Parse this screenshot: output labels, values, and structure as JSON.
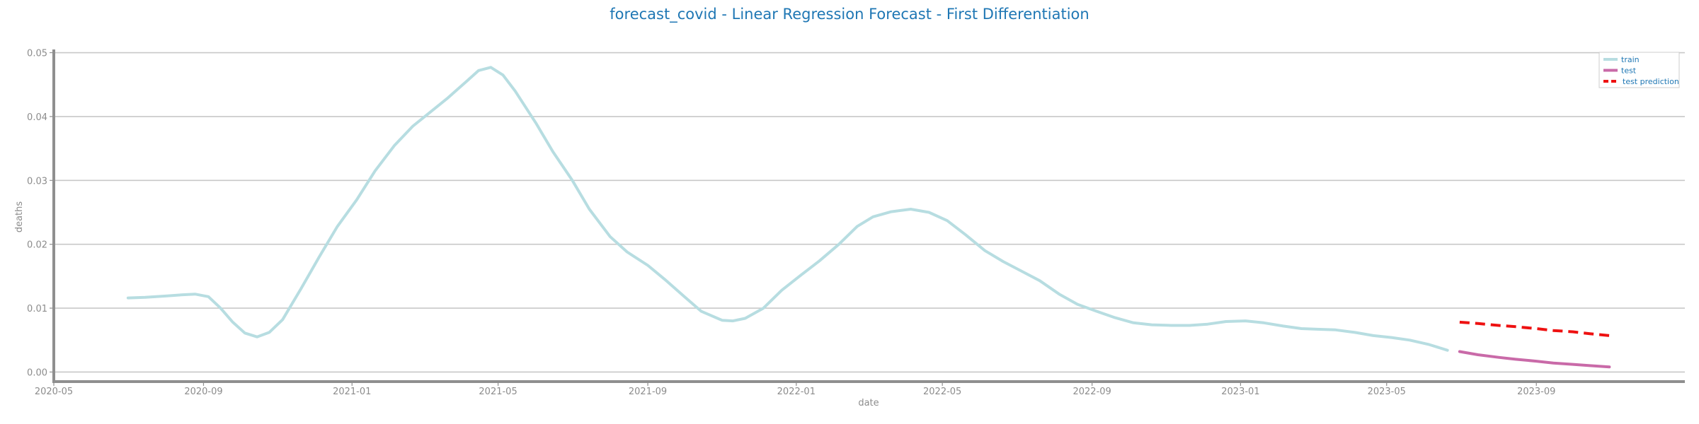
{
  "chart_data": {
    "type": "line",
    "title": "forecast_covid - Linear Regression Forecast - First Differentiation",
    "xlabel": "date",
    "ylabel": "deaths",
    "xlim": [
      "2020-05-01",
      "2024-01-01"
    ],
    "ylim": [
      -0.0015,
      0.0505
    ],
    "x_ticks": [
      "2020-05",
      "2020-09",
      "2021-01",
      "2021-05",
      "2021-09",
      "2022-01",
      "2022-05",
      "2022-09",
      "2023-01",
      "2023-05",
      "2023-09"
    ],
    "y_ticks": [
      "0.00",
      "0.01",
      "0.02",
      "0.03",
      "0.04",
      "0.05"
    ],
    "grid": "horizontal",
    "legend": "top-right",
    "series": [
      {
        "name": "train",
        "color": "#b7dde1",
        "dash": "solid",
        "points": [
          [
            "2020-07-01",
            0.0116
          ],
          [
            "2020-07-15",
            0.0117
          ],
          [
            "2020-08-01",
            0.0119
          ],
          [
            "2020-08-15",
            0.0121
          ],
          [
            "2020-08-25",
            0.0122
          ],
          [
            "2020-09-05",
            0.0118
          ],
          [
            "2020-09-15",
            0.01
          ],
          [
            "2020-09-25",
            0.0078
          ],
          [
            "2020-10-05",
            0.0061
          ],
          [
            "2020-10-15",
            0.0055
          ],
          [
            "2020-10-25",
            0.0062
          ],
          [
            "2020-11-05",
            0.0082
          ],
          [
            "2020-11-20",
            0.013
          ],
          [
            "2020-12-05",
            0.018
          ],
          [
            "2020-12-20",
            0.0228
          ],
          [
            "2021-01-05",
            0.027
          ],
          [
            "2021-01-20",
            0.0315
          ],
          [
            "2021-02-05",
            0.0355
          ],
          [
            "2021-02-20",
            0.0385
          ],
          [
            "2021-03-05",
            0.0405
          ],
          [
            "2021-03-20",
            0.0428
          ],
          [
            "2021-04-05",
            0.0455
          ],
          [
            "2021-04-15",
            0.0472
          ],
          [
            "2021-04-25",
            0.0477
          ],
          [
            "2021-05-05",
            0.0465
          ],
          [
            "2021-05-15",
            0.044
          ],
          [
            "2021-06-01",
            0.039
          ],
          [
            "2021-06-15",
            0.0345
          ],
          [
            "2021-07-01",
            0.03
          ],
          [
            "2021-07-15",
            0.0255
          ],
          [
            "2021-08-01",
            0.0212
          ],
          [
            "2021-08-15",
            0.0188
          ],
          [
            "2021-09-01",
            0.0167
          ],
          [
            "2021-09-15",
            0.0145
          ],
          [
            "2021-10-01",
            0.0118
          ],
          [
            "2021-10-15",
            0.0095
          ],
          [
            "2021-11-01",
            0.0081
          ],
          [
            "2021-11-10",
            0.008
          ],
          [
            "2021-11-20",
            0.0084
          ],
          [
            "2021-12-05",
            0.01
          ],
          [
            "2021-12-20",
            0.0128
          ],
          [
            "2022-01-05",
            0.0152
          ],
          [
            "2022-01-20",
            0.0174
          ],
          [
            "2022-02-05",
            0.02
          ],
          [
            "2022-02-20",
            0.0228
          ],
          [
            "2022-03-05",
            0.0243
          ],
          [
            "2022-03-20",
            0.0251
          ],
          [
            "2022-04-05",
            0.0255
          ],
          [
            "2022-04-20",
            0.025
          ],
          [
            "2022-05-05",
            0.0237
          ],
          [
            "2022-05-20",
            0.0215
          ],
          [
            "2022-06-05",
            0.019
          ],
          [
            "2022-06-20",
            0.0173
          ],
          [
            "2022-07-05",
            0.0158
          ],
          [
            "2022-07-20",
            0.0143
          ],
          [
            "2022-08-05",
            0.0122
          ],
          [
            "2022-08-20",
            0.0106
          ],
          [
            "2022-09-05",
            0.0095
          ],
          [
            "2022-09-20",
            0.0085
          ],
          [
            "2022-10-05",
            0.0077
          ],
          [
            "2022-10-20",
            0.0074
          ],
          [
            "2022-11-05",
            0.0073
          ],
          [
            "2022-11-20",
            0.0073
          ],
          [
            "2022-12-05",
            0.0075
          ],
          [
            "2022-12-20",
            0.0079
          ],
          [
            "2023-01-05",
            0.008
          ],
          [
            "2023-01-20",
            0.0077
          ],
          [
            "2023-02-05",
            0.0072
          ],
          [
            "2023-02-20",
            0.0068
          ],
          [
            "2023-03-05",
            0.0067
          ],
          [
            "2023-03-20",
            0.0066
          ],
          [
            "2023-04-05",
            0.0062
          ],
          [
            "2023-04-20",
            0.0057
          ],
          [
            "2023-05-05",
            0.0054
          ],
          [
            "2023-05-20",
            0.005
          ],
          [
            "2023-06-05",
            0.0043
          ],
          [
            "2023-06-20",
            0.0034
          ]
        ]
      },
      {
        "name": "test",
        "color": "#c96aa8",
        "dash": "solid",
        "points": [
          [
            "2023-06-30",
            0.0032
          ],
          [
            "2023-07-15",
            0.0027
          ],
          [
            "2023-08-01",
            0.0023
          ],
          [
            "2023-08-15",
            0.002
          ],
          [
            "2023-09-01",
            0.0017
          ],
          [
            "2023-09-15",
            0.0014
          ],
          [
            "2023-10-01",
            0.0012
          ],
          [
            "2023-10-15",
            0.001
          ],
          [
            "2023-10-31",
            0.0008
          ]
        ]
      },
      {
        "name": "test prediction",
        "color": "#ee1111",
        "dash": "dashed",
        "points": [
          [
            "2023-06-30",
            0.0078
          ],
          [
            "2023-07-15",
            0.0076
          ],
          [
            "2023-08-01",
            0.0073
          ],
          [
            "2023-08-15",
            0.0071
          ],
          [
            "2023-09-01",
            0.0068
          ],
          [
            "2023-09-15",
            0.0065
          ],
          [
            "2023-10-01",
            0.0063
          ],
          [
            "2023-10-15",
            0.006
          ],
          [
            "2023-10-31",
            0.0057
          ]
        ]
      }
    ]
  }
}
